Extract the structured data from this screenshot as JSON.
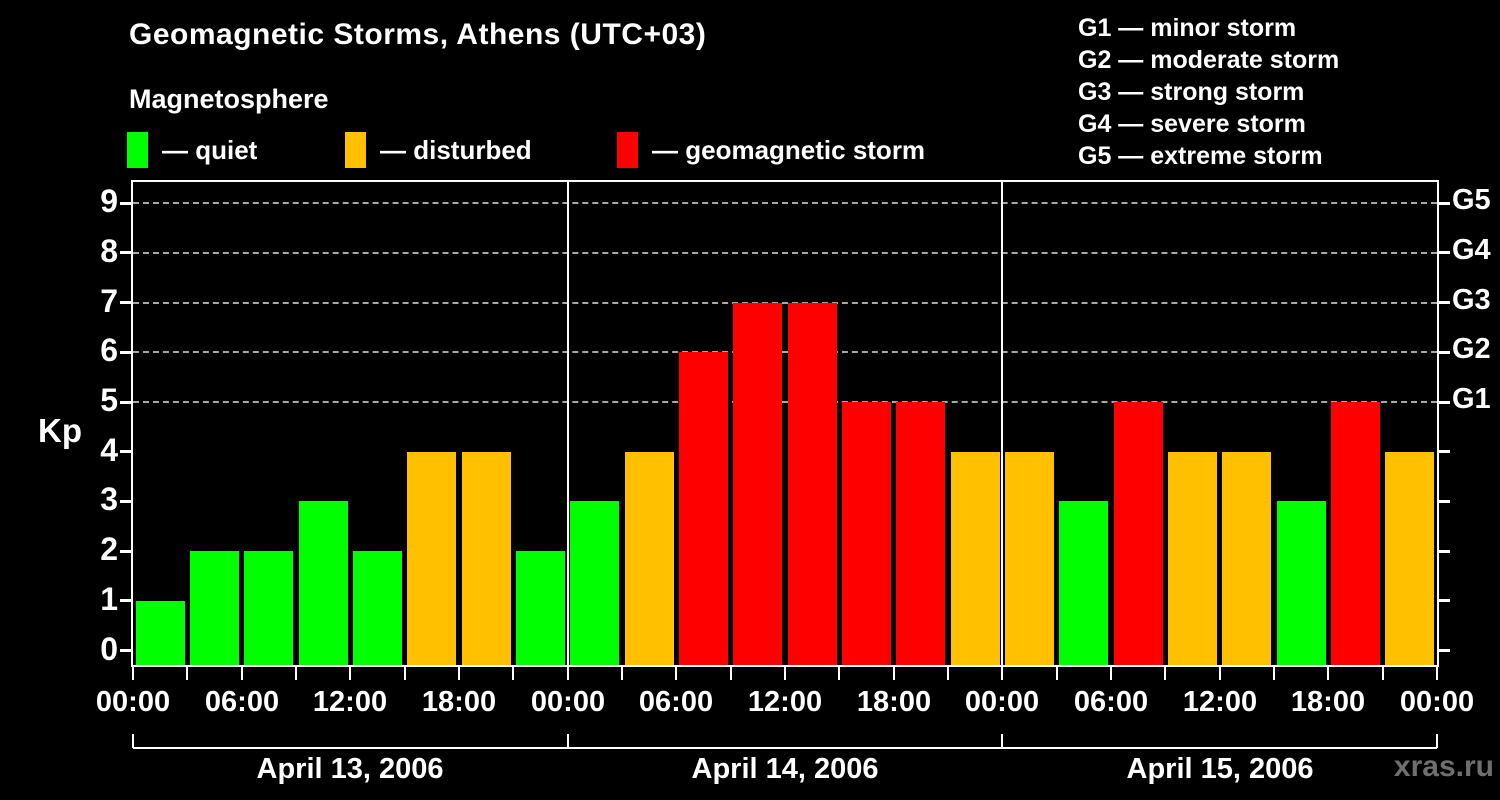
{
  "header": {
    "title": "Geomagnetic Storms, Athens (UTC+03)",
    "subtitle": "Magnetosphere"
  },
  "condition_legend": [
    {
      "name": "quiet",
      "label": "— quiet",
      "color": "#00ff00"
    },
    {
      "name": "disturbed",
      "label": "— disturbed",
      "color": "#ffc000"
    },
    {
      "name": "storm",
      "label": "— geomagnetic storm",
      "color": "#ff0000"
    }
  ],
  "storm_scale_legend": [
    "G1 — minor storm",
    "G2 — moderate storm",
    "G3 — strong storm",
    "G4 — severe storm",
    "G5 — extreme storm"
  ],
  "watermark": "xras.ru",
  "chart_data": {
    "type": "bar",
    "title": "Geomagnetic Storms, Athens (UTC+03)",
    "ylabel": "Kp",
    "ylim": [
      0,
      9
    ],
    "y_ticks": [
      0,
      1,
      2,
      3,
      4,
      5,
      6,
      7,
      8,
      9
    ],
    "interval_hours": 3,
    "bars_per_day": 8,
    "x_tick_labels": [
      "00:00",
      "06:00",
      "12:00",
      "18:00",
      "00:00",
      "06:00",
      "12:00",
      "18:00",
      "00:00",
      "06:00",
      "12:00",
      "18:00",
      "00:00"
    ],
    "g_scale_lines": [
      {
        "label": "G1",
        "kp": 5
      },
      {
        "label": "G2",
        "kp": 6
      },
      {
        "label": "G3",
        "kp": 7
      },
      {
        "label": "G4",
        "kp": 8
      },
      {
        "label": "G5",
        "kp": 9
      }
    ],
    "status_colors": {
      "quiet": "#00ff00",
      "disturbed": "#ffc000",
      "storm": "#ff0000"
    },
    "grid": "horizontal dashed lines at G levels (Kp 5–9)",
    "legend_position": "top",
    "days": [
      {
        "date": "April 13, 2006",
        "kp_values": [
          1,
          2,
          2,
          3,
          2,
          4,
          4,
          2
        ],
        "status": [
          "quiet",
          "quiet",
          "quiet",
          "quiet",
          "quiet",
          "disturbed",
          "disturbed",
          "quiet"
        ]
      },
      {
        "date": "April 14, 2006",
        "kp_values": [
          3,
          4,
          6,
          7,
          7,
          5,
          5,
          4
        ],
        "status": [
          "quiet",
          "disturbed",
          "storm",
          "storm",
          "storm",
          "storm",
          "storm",
          "disturbed"
        ]
      },
      {
        "date": "April 15, 2006",
        "kp_values": [
          4,
          3,
          5,
          4,
          4,
          3,
          5,
          4
        ],
        "status": [
          "disturbed",
          "quiet",
          "storm",
          "disturbed",
          "disturbed",
          "quiet",
          "storm",
          "disturbed"
        ]
      }
    ]
  }
}
